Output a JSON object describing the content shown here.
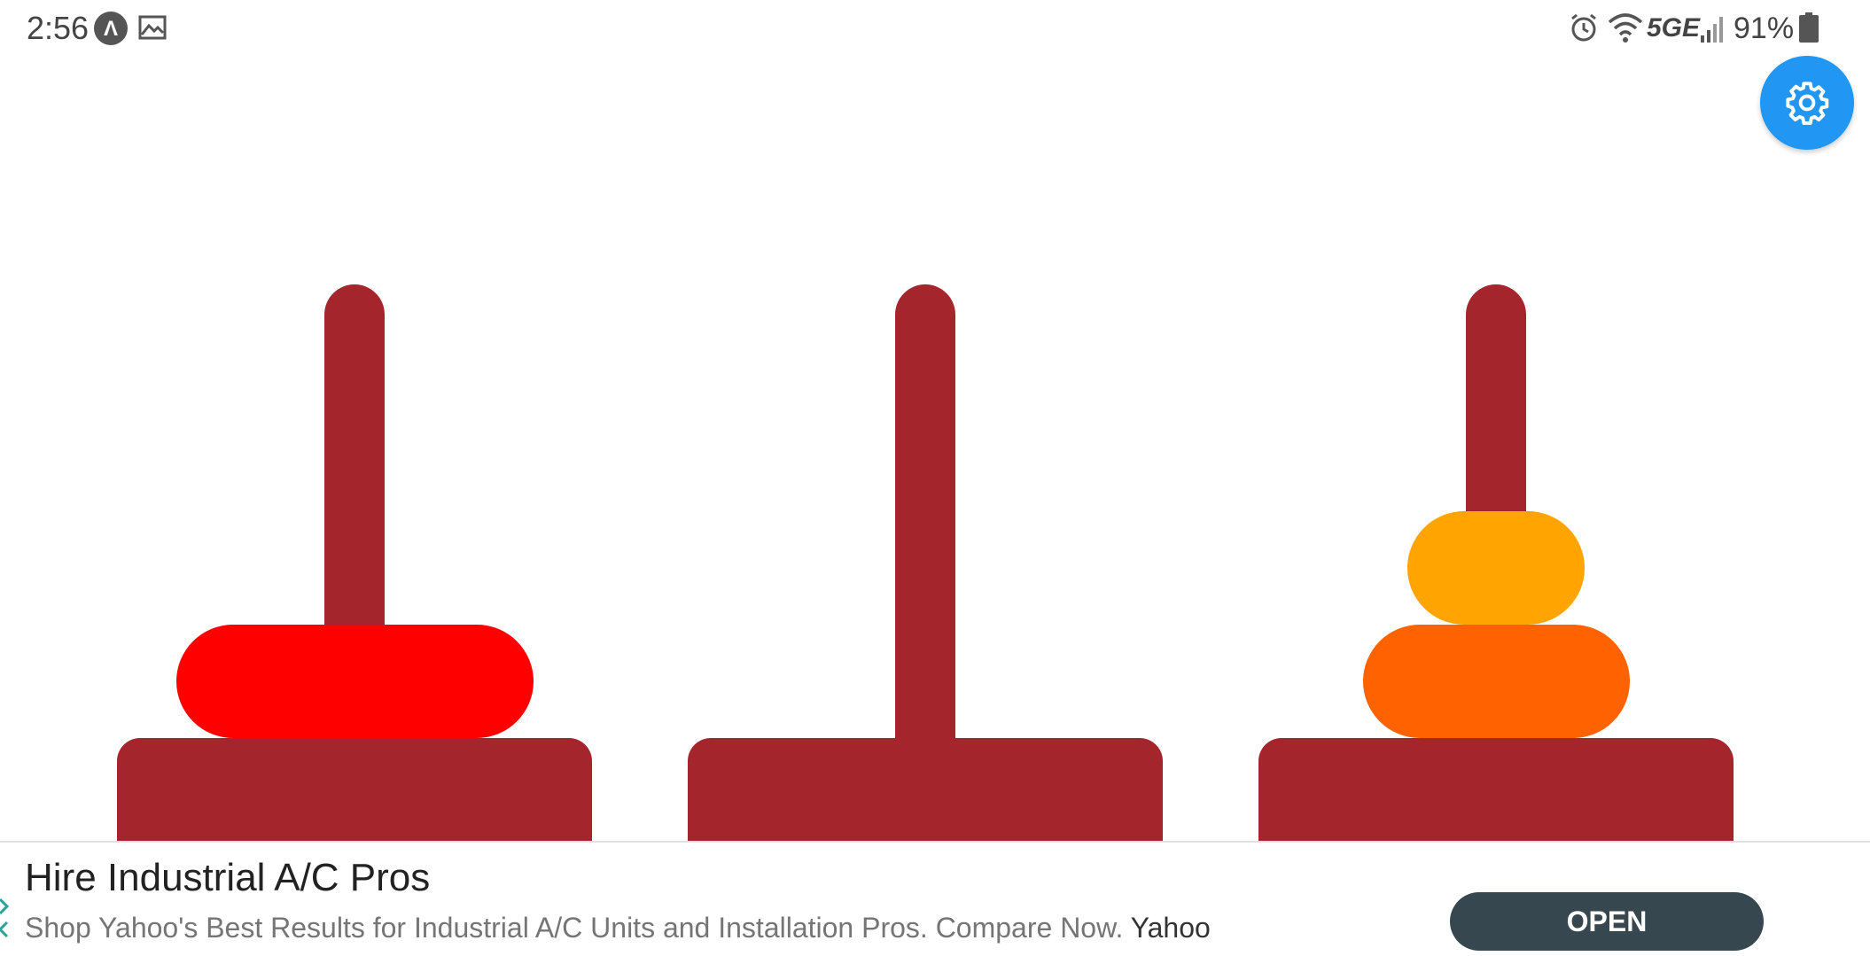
{
  "status_bar": {
    "time": "2:56",
    "app_icon_letter": "Λ",
    "network_type": "5GE",
    "battery": "91%"
  },
  "settings": {
    "icon": "gear-icon",
    "color": "#2196f3"
  },
  "colors": {
    "peg": "#a4262c",
    "disk_small": "#ffa400",
    "disk_medium": "#ff6200",
    "disk_large": "#ff0000"
  },
  "ad": {
    "title": "Hire Industrial A/C Pros",
    "description": "Shop Yahoo's Best Results for Industrial A/C Units and Installation Pros. Compare Now.",
    "advertiser": "Yahoo",
    "button_label": "OPEN"
  }
}
